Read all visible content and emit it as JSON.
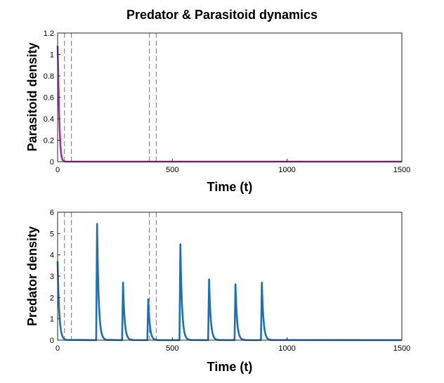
{
  "chart_data": [
    {
      "type": "line",
      "title": "Predator & Parasitoid dynamics",
      "xlabel": "Time (t)",
      "ylabel": "Parasitoid density",
      "xlim": [
        0,
        1500
      ],
      "ylim": [
        0,
        1.2
      ],
      "x_ticks": [
        "0",
        "500",
        "1000",
        "1500"
      ],
      "y_ticks": [
        "0",
        "0.2",
        "0.4",
        "0.6",
        "0.8",
        "1",
        "1.2"
      ],
      "vlines": [
        30,
        60,
        400,
        430
      ],
      "series": [
        {
          "name": "Parasitoid",
          "color": "#a32fa6",
          "x": [
            0,
            1,
            3,
            5,
            7,
            9,
            11,
            13,
            15,
            18,
            22,
            26,
            30,
            40,
            60,
            100,
            1500
          ],
          "values": [
            1.08,
            1.0,
            0.78,
            0.58,
            0.42,
            0.29,
            0.2,
            0.13,
            0.08,
            0.04,
            0.015,
            0.006,
            0.002,
            0.0,
            0.0,
            0.0,
            0.0
          ]
        }
      ]
    },
    {
      "type": "line",
      "xlabel": "Time (t)",
      "ylabel": "Predator density",
      "xlim": [
        0,
        1500
      ],
      "ylim": [
        0,
        6
      ],
      "x_ticks": [
        "0",
        "500",
        "1000",
        "1500"
      ],
      "y_ticks": [
        "0",
        "1",
        "2",
        "3",
        "4",
        "5",
        "6"
      ],
      "vlines": [
        30,
        60,
        400,
        430
      ],
      "peaks": [
        {
          "t": 0,
          "value": 3.7
        },
        {
          "t": 172,
          "value": 5.45
        },
        {
          "t": 285,
          "value": 2.7
        },
        {
          "t": 395,
          "value": 1.92
        },
        {
          "t": 535,
          "value": 4.5
        },
        {
          "t": 660,
          "value": 2.85
        },
        {
          "t": 775,
          "value": 2.62
        },
        {
          "t": 890,
          "value": 2.7
        }
      ],
      "series": [
        {
          "name": "Predator",
          "color": "#1f6fb4"
        }
      ]
    }
  ]
}
